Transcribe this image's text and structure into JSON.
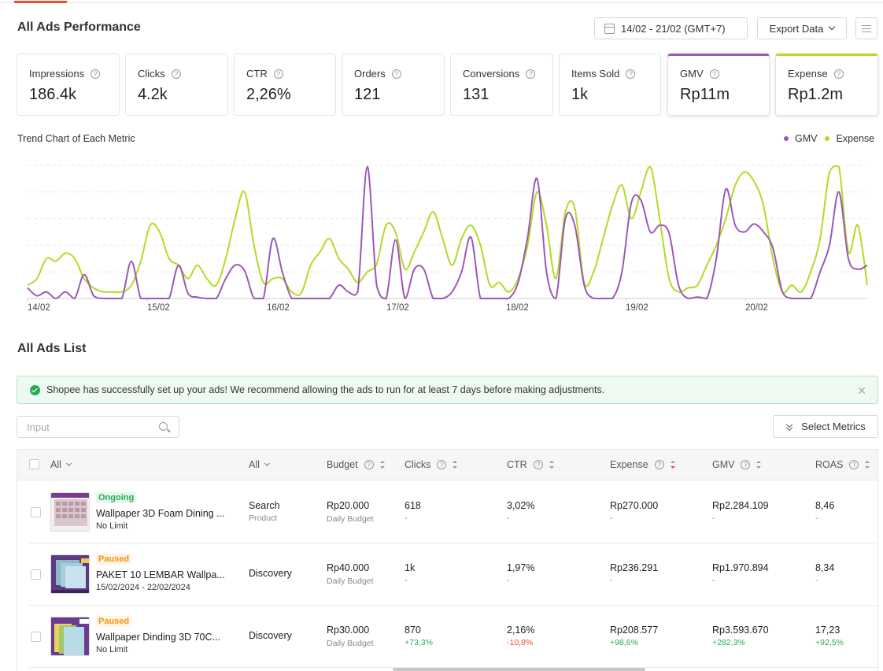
{
  "header": {
    "title": "All Ads Performance",
    "date_range": "14/02 - 21/02 (GMT+7)",
    "export_label": "Export Data"
  },
  "metrics": [
    {
      "label": "Impressions",
      "value": "186.4k"
    },
    {
      "label": "Clicks",
      "value": "4.2k"
    },
    {
      "label": "CTR",
      "value": "2,26%"
    },
    {
      "label": "Orders",
      "value": "121"
    },
    {
      "label": "Conversions",
      "value": "131"
    },
    {
      "label": "Items Sold",
      "value": "1k"
    },
    {
      "label": "GMV",
      "value": "Rp11m"
    },
    {
      "label": "Expense",
      "value": "Rp1.2m"
    }
  ],
  "colors": {
    "gmv": "#9b59b6",
    "expense": "#b6d926",
    "accent": "#ee4d2d",
    "success": "#26aa5a"
  },
  "chart_data": {
    "type": "line",
    "title": "Trend Chart of Each Metric",
    "legend_position": "top-right",
    "grid": true,
    "x_ticks": [
      "14/02",
      "15/02",
      "16/02",
      "17/02",
      "18/02",
      "19/02",
      "20/02"
    ],
    "ylim": [
      0,
      1
    ],
    "series": [
      {
        "name": "GMV",
        "color": "#9b59b6",
        "values": [
          0.08,
          0.02,
          0.05,
          0.0,
          0.05,
          0.0,
          0.18,
          0.02,
          0.0,
          0.0,
          0.0,
          0.28,
          0.0,
          0.0,
          0.0,
          0.0,
          0.25,
          0.04,
          0.01,
          0.0,
          0.0,
          0.15,
          0.25,
          0.21,
          0.0,
          0.0,
          0.45,
          0.2,
          0.0,
          0.0,
          0.0,
          0.0,
          0.0,
          0.1,
          0.05,
          0.05,
          0.99,
          0.1,
          0.0,
          0.44,
          0.0,
          0.22,
          0.22,
          0.0,
          0.0,
          0.05,
          0.2,
          0.46,
          0.0,
          0.0,
          0.0,
          0.0,
          0.12,
          0.46,
          0.9,
          0.2,
          0.0,
          0.6,
          0.55,
          0.1,
          0.0,
          0.0,
          0.0,
          0.2,
          0.72,
          0.74,
          0.5,
          0.55,
          0.49,
          0.1,
          0.0,
          0.01,
          0.0,
          0.3,
          0.82,
          0.55,
          0.5,
          0.56,
          0.5,
          0.38,
          0.05,
          0.0,
          0.0,
          0.0,
          0.2,
          0.4,
          0.8,
          0.3,
          0.22,
          0.25
        ]
      },
      {
        "name": "Expense",
        "color": "#b6d926",
        "values": [
          0.1,
          0.15,
          0.3,
          0.28,
          0.34,
          0.3,
          0.15,
          0.08,
          0.05,
          0.05,
          0.05,
          0.1,
          0.28,
          0.55,
          0.5,
          0.3,
          0.25,
          0.15,
          0.25,
          0.15,
          0.1,
          0.3,
          0.6,
          0.8,
          0.4,
          0.12,
          0.15,
          0.15,
          0.05,
          0.04,
          0.25,
          0.35,
          0.45,
          0.3,
          0.22,
          0.12,
          0.2,
          0.26,
          0.55,
          0.5,
          0.22,
          0.35,
          0.5,
          0.65,
          0.45,
          0.25,
          0.45,
          0.55,
          0.4,
          0.1,
          0.12,
          0.05,
          0.15,
          0.4,
          0.8,
          0.55,
          0.15,
          0.65,
          0.68,
          0.12,
          0.2,
          0.45,
          0.7,
          0.85,
          0.6,
          0.8,
          0.99,
          0.6,
          0.15,
          0.05,
          0.08,
          0.1,
          0.25,
          0.4,
          0.6,
          0.85,
          0.95,
          0.88,
          0.7,
          0.3,
          0.05,
          0.1,
          0.05,
          0.2,
          0.45,
          0.95,
          0.99,
          0.35,
          0.55,
          0.1
        ]
      }
    ]
  },
  "list": {
    "title": "All Ads List",
    "notice": "Shopee has successfully set up your ads! We recommend allowing the ads to run for at least 7 days before making adjustments.",
    "search_placeholder": "Input",
    "select_metrics_label": "Select Metrics",
    "columns": {
      "all1": "All",
      "all2": "All",
      "budget": "Budget",
      "clicks": "Clicks",
      "ctr": "CTR",
      "expense": "Expense",
      "gmv": "GMV",
      "roas": "ROAS"
    },
    "rows": [
      {
        "status": "Ongoing",
        "name": "Wallpaper 3D Foam Dining ...",
        "period": "No Limit",
        "placement": "Search",
        "placement_sub": "Product",
        "budget": "Rp20.000",
        "budget_sub": "Daily Budget",
        "clicks": "618",
        "clicks_d": "-",
        "ctr": "3,02%",
        "ctr_d": "-",
        "expense": "Rp270.000",
        "expense_d": "-",
        "gmv": "Rp2.284.109",
        "gmv_d": "-",
        "roas": "8,46",
        "roas_d": "-"
      },
      {
        "status": "Paused",
        "name": "PAKET 10 LEMBAR Wallpa...",
        "period": "15/02/2024 - 22/02/2024",
        "placement": "Discovery",
        "placement_sub": "",
        "budget": "Rp40.000",
        "budget_sub": "Daily Budget",
        "clicks": "1k",
        "clicks_d": "-",
        "ctr": "1,97%",
        "ctr_d": "-",
        "expense": "Rp236.291",
        "expense_d": "-",
        "gmv": "Rp1.970.894",
        "gmv_d": "-",
        "roas": "8,34",
        "roas_d": "-"
      },
      {
        "status": "Paused",
        "name": "Wallpaper Dinding 3D 70C...",
        "period": "No Limit",
        "placement": "Discovery",
        "placement_sub": "",
        "budget": "Rp30.000",
        "budget_sub": "Daily Budget",
        "clicks": "870",
        "clicks_d": "+73,3%",
        "ctr": "2,16%",
        "ctr_d": "-10,8%",
        "expense": "Rp208.577",
        "expense_d": "+98,6%",
        "gmv": "Rp3.593.670",
        "gmv_d": "+282,3%",
        "roas": "17,23",
        "roas_d": "+92,5%"
      }
    ]
  }
}
